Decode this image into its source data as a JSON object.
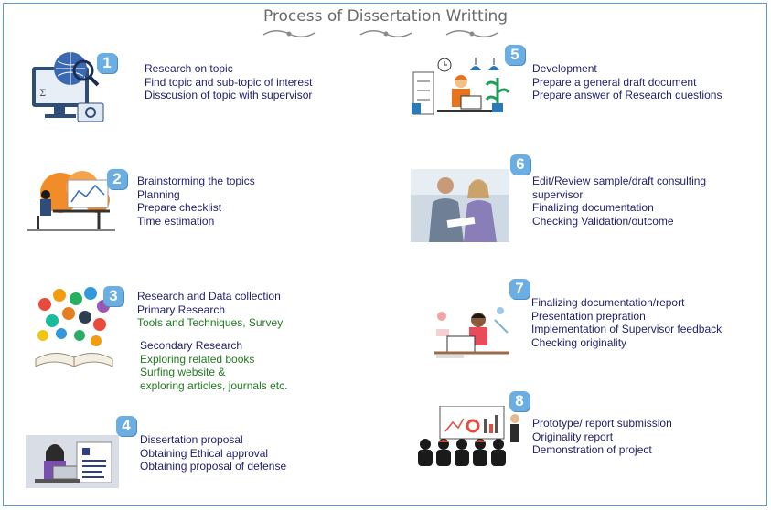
{
  "title": "Process of Dissertation Writting",
  "colors": {
    "accent": "#6aaee3",
    "text": "#1f1f6e",
    "green_text": "#217a21",
    "frame": "#5b9bd5"
  },
  "steps": [
    {
      "number": "1",
      "icon": "globe-computer-icon",
      "lines": [
        "Research on topic",
        "Find topic and sub-topic of interest",
        "Disscusion of topic with supervisor"
      ]
    },
    {
      "number": "2",
      "icon": "desk-worker-icon",
      "lines": [
        "Brainstorming the topics",
        "Planning",
        "Prepare checklist",
        "Time estimation"
      ]
    },
    {
      "number": "3",
      "icon": "book-ideas-icon",
      "lines": [
        "Research and Data collection",
        "Primary Research",
        "Tools and Techniques, Survey"
      ],
      "lines2": [
        "Secondary Research",
        "Exploring related books",
        "Surfing website &",
        "exploring articles, journals etc."
      ]
    },
    {
      "number": "4",
      "icon": "proposal-document-icon",
      "lines": [
        "Dissertation proposal",
        "Obtaining Ethical approval",
        "Obtaining proposal of defense"
      ]
    },
    {
      "number": "5",
      "icon": "office-development-icon",
      "lines": [
        "Development",
        "Prepare a general draft document",
        "Prepare answer of Research questions"
      ]
    },
    {
      "number": "6",
      "icon": "consulting-meeting-icon",
      "lines": [
        "Edit/Review sample/draft consulting",
        "supervisor",
        "Finalizing documentation",
        "Checking Validation/outcome"
      ]
    },
    {
      "number": "7",
      "icon": "presenter-desk-icon",
      "lines": [
        "Finalizing documentation/report",
        "Presentation prepration",
        "Implementation of Supervisor feedback",
        "Checking originality"
      ]
    },
    {
      "number": "8",
      "icon": "audience-presentation-icon",
      "lines": [
        "Prototype/ report submission",
        "Originality report",
        "Demonstration of project"
      ]
    }
  ]
}
